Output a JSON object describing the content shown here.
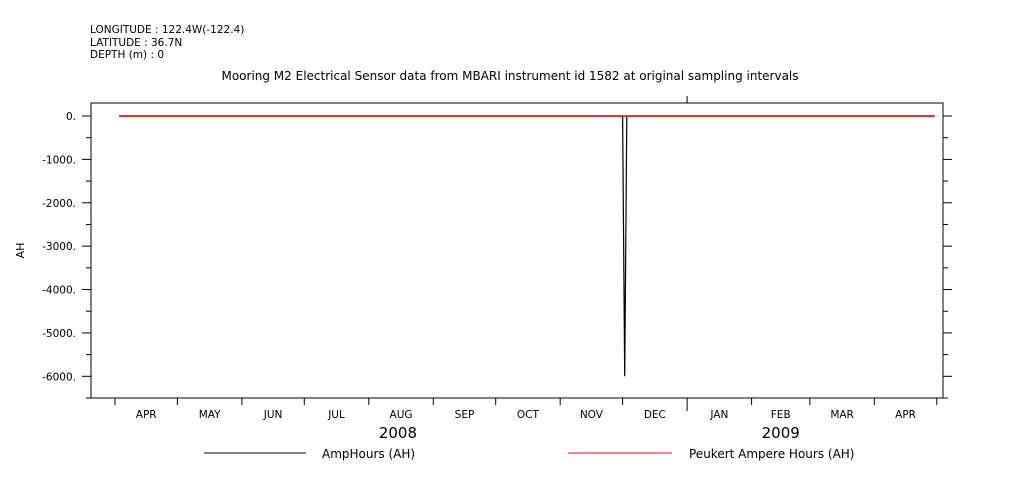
{
  "header": {
    "longitude": "LONGITUDE : 122.4W(-122.4)",
    "latitude": "LATITUDE : 36.7N",
    "depth": "DEPTH (m) : 0"
  },
  "chart_data": {
    "type": "line",
    "title": "Mooring M2 Electrical Sensor data from MBARI instrument id 1582 at original sampling intervals",
    "ylabel": "AH",
    "xlabel": "",
    "ylim": [
      -6500,
      300
    ],
    "yticks": [
      0,
      -1000,
      -2000,
      -3000,
      -4000,
      -5000,
      -6000
    ],
    "ytick_labels": [
      "0.",
      "-1000.",
      "-2000.",
      "-3000.",
      "-4000.",
      "-5000.",
      "-6000."
    ],
    "months": [
      "APR",
      "MAY",
      "JUN",
      "JUL",
      "AUG",
      "SEP",
      "OCT",
      "NOV",
      "DEC",
      "JAN",
      "FEB",
      "MAR",
      "APR"
    ],
    "years": [
      "2008",
      "2009"
    ],
    "grid": false,
    "legend_position": "bottom",
    "series": [
      {
        "name": "AmpHours (AH)",
        "color": "#000000",
        "points": [
          [
            "2008-04-03",
            0
          ],
          [
            "2008-04-25",
            0
          ],
          [
            "2008-05-10",
            0
          ],
          [
            "2008-06-15",
            0
          ],
          [
            "2008-07-21",
            0
          ],
          [
            "2008-08-01",
            0
          ],
          [
            "2008-09-15",
            0
          ],
          [
            "2008-10-20",
            0
          ],
          [
            "2008-11-15",
            0
          ],
          [
            "2008-12-01",
            0
          ],
          [
            "2008-12-02",
            -6000
          ],
          [
            "2008-12-03",
            0
          ],
          [
            "2009-01-15",
            0
          ],
          [
            "2009-02-15",
            0
          ],
          [
            "2009-03-15",
            0
          ],
          [
            "2009-04-30",
            0
          ]
        ]
      },
      {
        "name": "Peukert Ampere Hours (AH)",
        "color": "#ff0000",
        "points": [
          [
            "2008-04-03",
            0
          ],
          [
            "2008-06-01",
            0
          ],
          [
            "2008-08-01",
            0
          ],
          [
            "2008-10-01",
            0
          ],
          [
            "2008-12-01",
            0
          ],
          [
            "2009-02-01",
            0
          ],
          [
            "2009-04-30",
            0
          ]
        ]
      }
    ]
  }
}
